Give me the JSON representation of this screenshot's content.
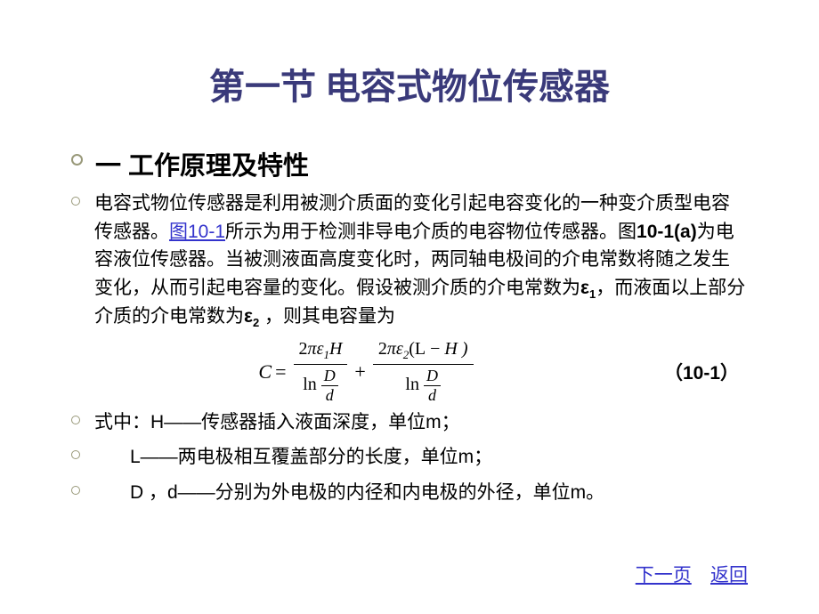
{
  "title": "第一节  电容式物位传感器",
  "subtitle": "一  工作原理及特性",
  "paragraph": {
    "part1": "电容式物位传感器是利用被测介质面的变化引起电容变化的一种变介质型电容传感器。",
    "link1": "图10-1",
    "part2": "所示为用于检测非导电介质的电容物位传感器。图",
    "bold1": "10-1(a)",
    "part3": "为电容液位传感器。当被测液面高度变化时，两同轴电极间的介电常数将随之发生变化，从而引起电容量的变化。假设被测介质的介电常数为",
    "eps1": "ε",
    "sub1": "1",
    "part4": "，而液面以上部分介质的介电常数为",
    "eps2": "ε",
    "sub2": "2",
    "part5": " ，则其电容量为"
  },
  "formula": {
    "C": "C",
    "eq": "=",
    "num1_a": "2",
    "num1_pi": "π",
    "num1_eps": "ε",
    "num1_sub": "1",
    "num1_H": "H",
    "den_ln": "ln",
    "den_D": "D",
    "den_d": "d",
    "plus": "+",
    "num2_a": "2",
    "num2_pi": "π",
    "num2_eps": "ε",
    "num2_sub": "2",
    "num2_L": "(L",
    "num2_minus": "−",
    "num2_H": "H )",
    "number": "（10-1）"
  },
  "definitions": {
    "line1": "式中：H——传感器插入液面深度，单位m；",
    "line2": "L——两电极相互覆盖部分的长度，单位m；",
    "line3": "D ，d——分别为外电极的内径和内电极的外径，单位m。"
  },
  "nav": {
    "next": "下一页",
    "back": "返回"
  },
  "colors": {
    "title_color": "#3a3a7a",
    "text_color": "#000000",
    "link_color": "#3333cc",
    "bullet_border": "#99997a",
    "background": "#ffffff"
  }
}
